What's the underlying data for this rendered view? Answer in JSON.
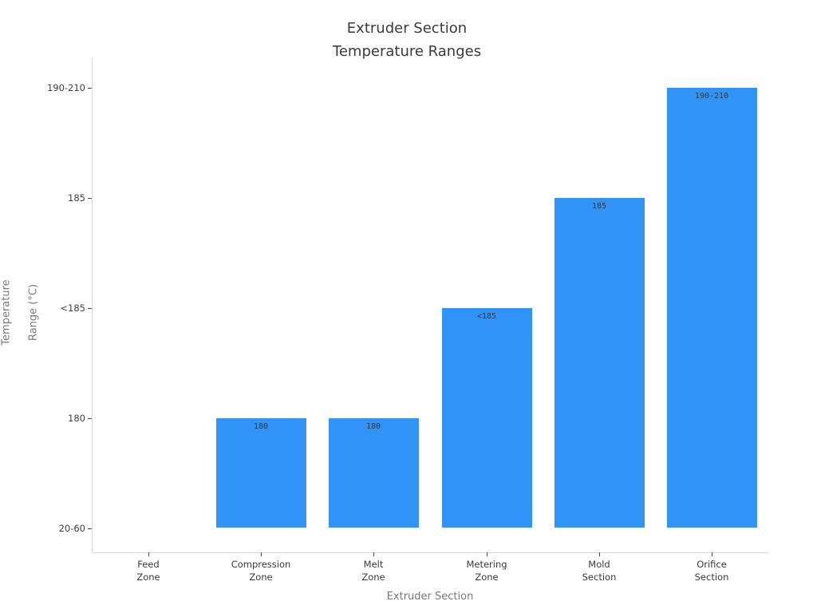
{
  "chart_data": {
    "type": "bar",
    "title": "Extruder Section\nTemperature Ranges",
    "title_lines": [
      "Extruder Section",
      "Temperature Ranges"
    ],
    "xlabel": "Extruder Section",
    "ylabel": "Temperature Range (°C)",
    "ylabel_lines": [
      "Temperature",
      "Range (°C)"
    ],
    "categories": [
      "Feed\nZone",
      "Compression\nZone",
      "Melt\nZone",
      "Metering\nZone",
      "Mold\nSection",
      "Orifice\nSection"
    ],
    "values": [
      "20-60",
      "180",
      "180",
      "<185",
      "185",
      "190-210"
    ],
    "bar_labels": [
      "",
      "180",
      "180",
      "<185",
      "185",
      "190-210"
    ],
    "y_tick_labels": [
      "20-60",
      "180",
      "<185",
      "185",
      "190-210"
    ],
    "baseline_category": "20-60",
    "grid": false,
    "legend": false,
    "bar_color": "#3193f5",
    "orientation": "vertical",
    "note": "y axis is ordinal: bars rise from the 20-60 baseline to their labeled temperature level; Feed Zone sits at the baseline (no visible bar)"
  }
}
